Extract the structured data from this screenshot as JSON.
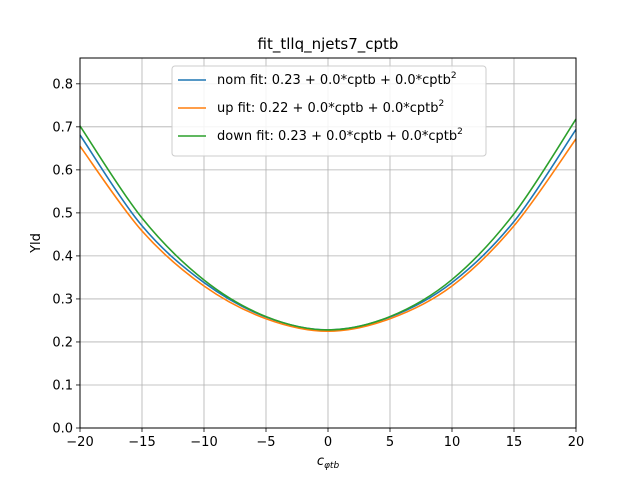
{
  "chart_data": {
    "type": "line",
    "title": "fit_tllq_njets7_cptb",
    "xlabel": "c",
    "xlabel_sub": "φtb",
    "ylabel": "Yld",
    "xlim": [
      -20,
      20
    ],
    "ylim": [
      0.0,
      0.86
    ],
    "xticks": [
      -20,
      -15,
      -10,
      -5,
      0,
      5,
      10,
      15,
      20
    ],
    "yticks": [
      0.0,
      0.1,
      0.2,
      0.3,
      0.4,
      0.5,
      0.6,
      0.7,
      0.8
    ],
    "grid": true,
    "legend_position": "top-center",
    "series": [
      {
        "name": "nom fit: 0.23 + 0.0*cptb + 0.0*cptb",
        "name_sup": "2",
        "color": "#1f77b4",
        "x": [
          -20,
          -15,
          -10,
          -5,
          0,
          5,
          10,
          15,
          20
        ],
        "y": [
          0.681,
          0.47,
          0.338,
          0.258,
          0.228,
          0.258,
          0.338,
          0.48,
          0.694
        ]
      },
      {
        "name": "up fit: 0.22 + 0.0*cptb + 0.0*cptb",
        "name_sup": "2",
        "color": "#ff7f0e",
        "x": [
          -20,
          -15,
          -10,
          -5,
          0,
          5,
          10,
          15,
          20
        ],
        "y": [
          0.655,
          0.458,
          0.33,
          0.254,
          0.225,
          0.254,
          0.33,
          0.47,
          0.672
        ]
      },
      {
        "name": "down fit: 0.23 + 0.0*cptb + 0.0*cptb",
        "name_sup": "2",
        "color": "#2ca02c",
        "x": [
          -20,
          -15,
          -10,
          -5,
          0,
          5,
          10,
          15,
          20
        ],
        "y": [
          0.702,
          0.488,
          0.344,
          0.259,
          0.228,
          0.259,
          0.345,
          0.498,
          0.718
        ]
      }
    ]
  }
}
